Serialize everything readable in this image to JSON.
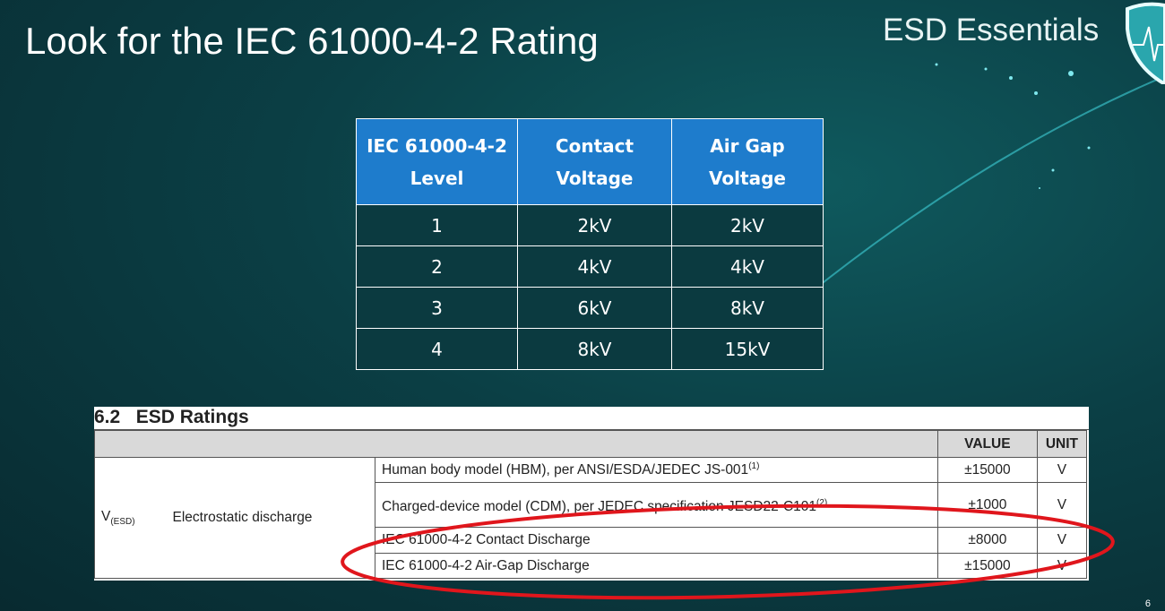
{
  "slide": {
    "title": "Look for the IEC 61000-4-2 Rating",
    "brand": "ESD Essentials",
    "page_number": "6"
  },
  "iec_table": {
    "headers": [
      [
        "IEC 61000-4-2",
        "Level"
      ],
      [
        "Contact",
        "Voltage"
      ],
      [
        "Air Gap",
        "Voltage"
      ]
    ],
    "rows": [
      [
        "1",
        "2kV",
        "2kV"
      ],
      [
        "2",
        "4kV",
        "4kV"
      ],
      [
        "3",
        "6kV",
        "8kV"
      ],
      [
        "4",
        "8kV",
        "15kV"
      ]
    ],
    "header_color": "#1e7ccc"
  },
  "esd_ratings": {
    "section": "6.2   ESD Ratings",
    "col_value": "VALUE",
    "col_unit": "UNIT",
    "symbol": "V",
    "symbol_sub": "(ESD)",
    "parameter": "Electrostatic discharge",
    "rows": [
      {
        "condition": "Human body model (HBM), per ANSI/ESDA/JEDEC JS-001",
        "note": "(1)",
        "value": "±15000",
        "unit": "V"
      },
      {
        "condition": "Charged-device model (CDM), per JEDEC specification JESD22-C101",
        "note": "(2)",
        "value": "±1000",
        "unit": "V"
      },
      {
        "condition": "IEC 61000-4-2 Contact Discharge",
        "note": "",
        "value": "±8000",
        "unit": "V"
      },
      {
        "condition": "IEC 61000-4-2 Air-Gap Discharge",
        "note": "",
        "value": "±15000",
        "unit": "V"
      }
    ],
    "highlight_color": "#e0161c"
  }
}
